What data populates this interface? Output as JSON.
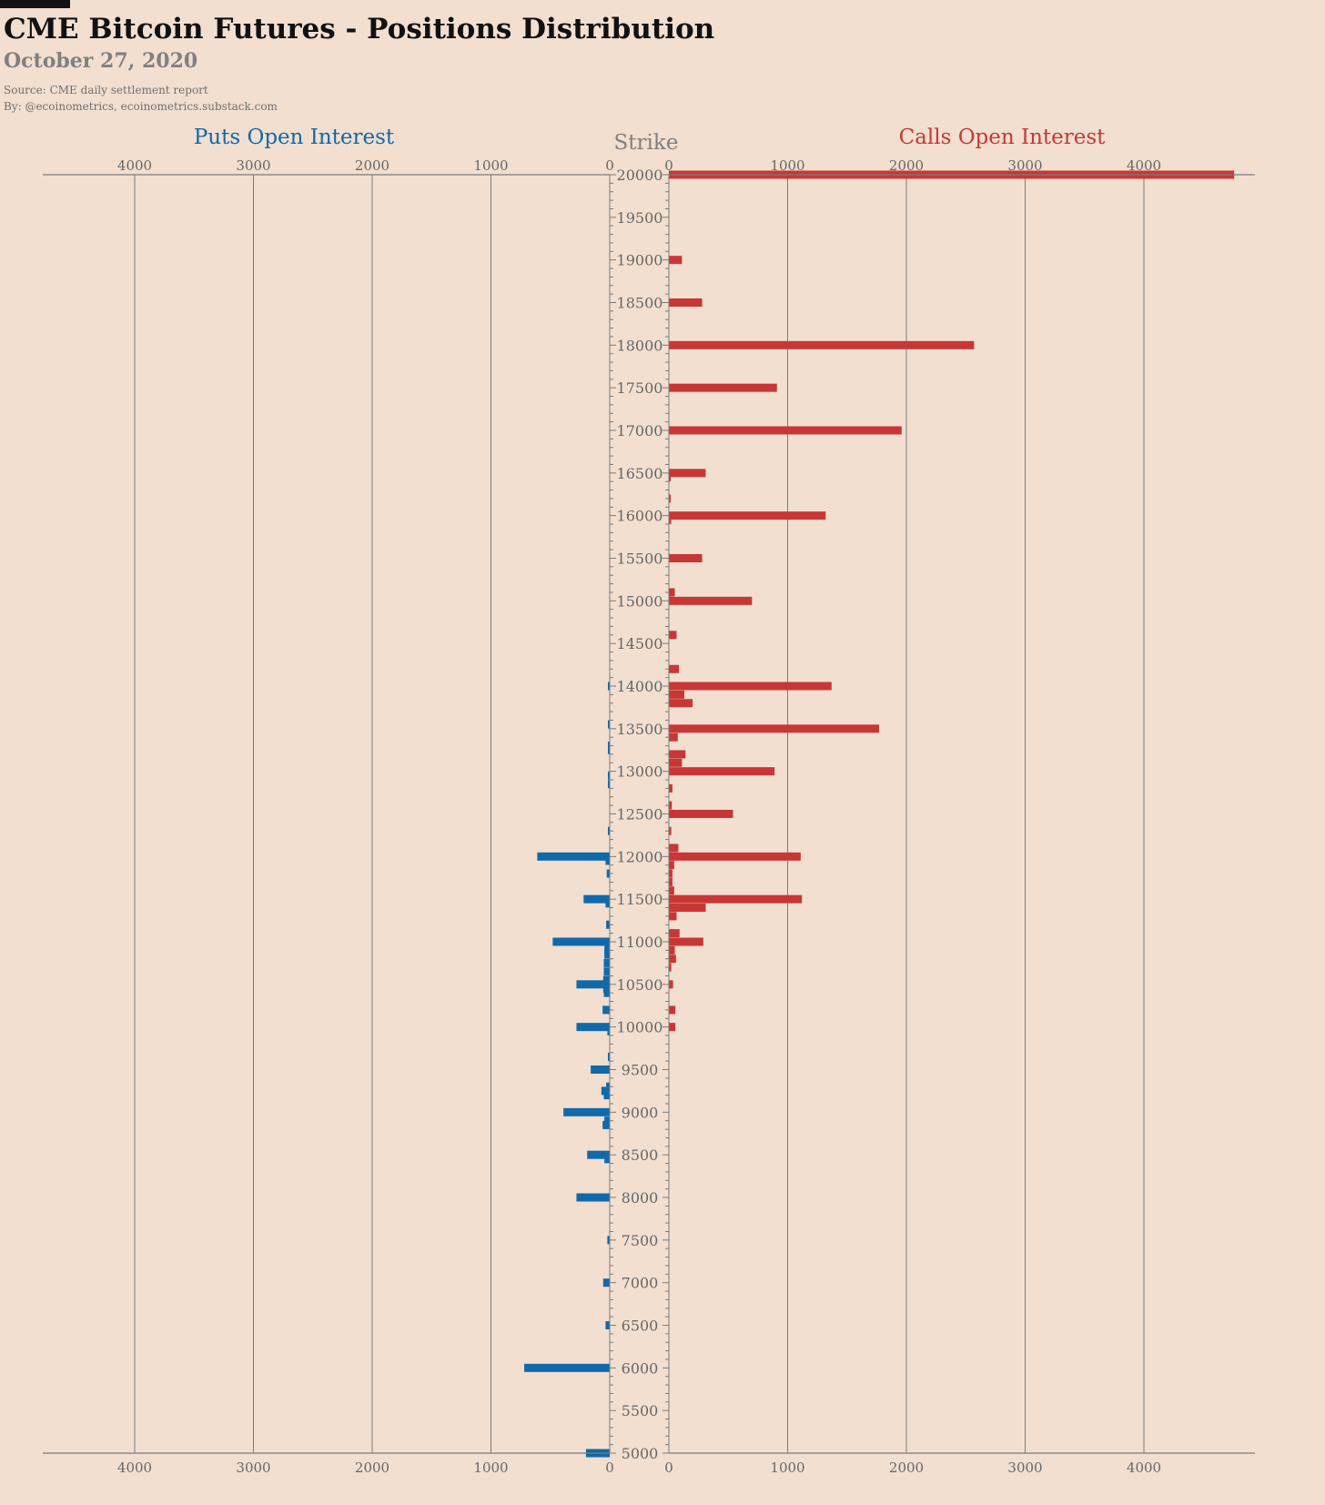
{
  "header": {
    "title": "CME Bitcoin Futures - Positions Distribution",
    "subtitle": "October 27, 2020",
    "source": "Source: CME daily settlement report",
    "byline": "By: @ecoinometrics, ecoinometrics.substack.com"
  },
  "colors": {
    "background": "#f2dfd0",
    "puts": "#1069aa",
    "calls": "#c73736",
    "axis": "#7b7b7b",
    "text_gray": "#808080"
  },
  "chart_data": {
    "type": "bar",
    "orientation": "horizontal-butterfly",
    "title": "",
    "puts_label": "Puts Open Interest",
    "calls_label": "Calls Open Interest",
    "strike_label": "Strike",
    "ylim": [
      5000,
      20000
    ],
    "xlim": [
      0,
      4800
    ],
    "x_ticks": [
      0,
      1000,
      2000,
      3000,
      4000
    ],
    "x_tick_labels": [
      "0",
      "1000",
      "2000",
      "3000",
      "4000"
    ],
    "y_ticks": [
      5000,
      5500,
      6000,
      6500,
      7000,
      7500,
      8000,
      8500,
      9000,
      9500,
      10000,
      10500,
      11000,
      11500,
      12000,
      12500,
      13000,
      13500,
      14000,
      14500,
      15000,
      15500,
      16000,
      16500,
      17000,
      17500,
      18000,
      18500,
      19000,
      19500,
      20000
    ],
    "y_tick_labels": [
      "5000",
      "5500",
      "6000",
      "6500",
      "7000",
      "7500",
      "8000",
      "8500",
      "9000",
      "9500",
      "10000",
      "10500",
      "11000",
      "11500",
      "12000",
      "12500",
      "13000",
      "13500",
      "14000",
      "14500",
      "15000",
      "15500",
      "16000",
      "16500",
      "17000",
      "17500",
      "18000",
      "18500",
      "19000",
      "19500",
      "20000"
    ],
    "grid": true,
    "series": [
      {
        "name": "Puts Open Interest",
        "side": "left",
        "points": [
          {
            "strike": 5000,
            "value": 200
          },
          {
            "strike": 6000,
            "value": 720
          },
          {
            "strike": 6500,
            "value": 35
          },
          {
            "strike": 7000,
            "value": 55
          },
          {
            "strike": 7500,
            "value": 20
          },
          {
            "strike": 8000,
            "value": 280
          },
          {
            "strike": 8450,
            "value": 45
          },
          {
            "strike": 8500,
            "value": 190
          },
          {
            "strike": 8850,
            "value": 60
          },
          {
            "strike": 8900,
            "value": 45
          },
          {
            "strike": 9000,
            "value": 390
          },
          {
            "strike": 9200,
            "value": 50
          },
          {
            "strike": 9250,
            "value": 70
          },
          {
            "strike": 9300,
            "value": 30
          },
          {
            "strike": 9500,
            "value": 160
          },
          {
            "strike": 9650,
            "value": 10
          },
          {
            "strike": 9950,
            "value": 20
          },
          {
            "strike": 10000,
            "value": 280
          },
          {
            "strike": 10200,
            "value": 60
          },
          {
            "strike": 10400,
            "value": 50
          },
          {
            "strike": 10450,
            "value": 55
          },
          {
            "strike": 10500,
            "value": 280
          },
          {
            "strike": 10550,
            "value": 55
          },
          {
            "strike": 10650,
            "value": 50
          },
          {
            "strike": 10750,
            "value": 50
          },
          {
            "strike": 10850,
            "value": 45
          },
          {
            "strike": 10900,
            "value": 45
          },
          {
            "strike": 10950,
            "value": 40
          },
          {
            "strike": 11000,
            "value": 480
          },
          {
            "strike": 11200,
            "value": 30
          },
          {
            "strike": 11450,
            "value": 35
          },
          {
            "strike": 11500,
            "value": 220
          },
          {
            "strike": 11800,
            "value": 25
          },
          {
            "strike": 11950,
            "value": 35
          },
          {
            "strike": 12000,
            "value": 610
          },
          {
            "strike": 12300,
            "value": 15
          },
          {
            "strike": 12850,
            "value": 15
          },
          {
            "strike": 12950,
            "value": 15
          },
          {
            "strike": 13250,
            "value": 15
          },
          {
            "strike": 13300,
            "value": 15
          },
          {
            "strike": 13550,
            "value": 10
          },
          {
            "strike": 14000,
            "value": 15
          }
        ]
      },
      {
        "name": "Calls Open Interest",
        "side": "right",
        "points": [
          {
            "strike": 20000,
            "value": 4760
          },
          {
            "strike": 19000,
            "value": 110
          },
          {
            "strike": 18500,
            "value": 280
          },
          {
            "strike": 18000,
            "value": 2570
          },
          {
            "strike": 17500,
            "value": 910
          },
          {
            "strike": 17000,
            "value": 1960
          },
          {
            "strike": 16500,
            "value": 310
          },
          {
            "strike": 16450,
            "value": 15
          },
          {
            "strike": 16200,
            "value": 15
          },
          {
            "strike": 16000,
            "value": 1320
          },
          {
            "strike": 15950,
            "value": 20
          },
          {
            "strike": 15500,
            "value": 280
          },
          {
            "strike": 15100,
            "value": 50
          },
          {
            "strike": 15000,
            "value": 700
          },
          {
            "strike": 14600,
            "value": 65
          },
          {
            "strike": 14200,
            "value": 85
          },
          {
            "strike": 14000,
            "value": 1370
          },
          {
            "strike": 13900,
            "value": 130
          },
          {
            "strike": 13800,
            "value": 200
          },
          {
            "strike": 13500,
            "value": 1770
          },
          {
            "strike": 13400,
            "value": 75
          },
          {
            "strike": 13200,
            "value": 140
          },
          {
            "strike": 13100,
            "value": 110
          },
          {
            "strike": 13000,
            "value": 890
          },
          {
            "strike": 12800,
            "value": 30
          },
          {
            "strike": 12600,
            "value": 25
          },
          {
            "strike": 12500,
            "value": 540
          },
          {
            "strike": 12300,
            "value": 20
          },
          {
            "strike": 12100,
            "value": 80
          },
          {
            "strike": 12000,
            "value": 1110
          },
          {
            "strike": 11900,
            "value": 45
          },
          {
            "strike": 11800,
            "value": 30
          },
          {
            "strike": 11700,
            "value": 30
          },
          {
            "strike": 11600,
            "value": 45
          },
          {
            "strike": 11500,
            "value": 1120
          },
          {
            "strike": 11400,
            "value": 310
          },
          {
            "strike": 11300,
            "value": 65
          },
          {
            "strike": 11100,
            "value": 90
          },
          {
            "strike": 11000,
            "value": 290
          },
          {
            "strike": 10900,
            "value": 50
          },
          {
            "strike": 10800,
            "value": 60
          },
          {
            "strike": 10700,
            "value": 20
          },
          {
            "strike": 10500,
            "value": 35
          },
          {
            "strike": 10200,
            "value": 55
          },
          {
            "strike": 10000,
            "value": 55
          }
        ]
      }
    ]
  }
}
